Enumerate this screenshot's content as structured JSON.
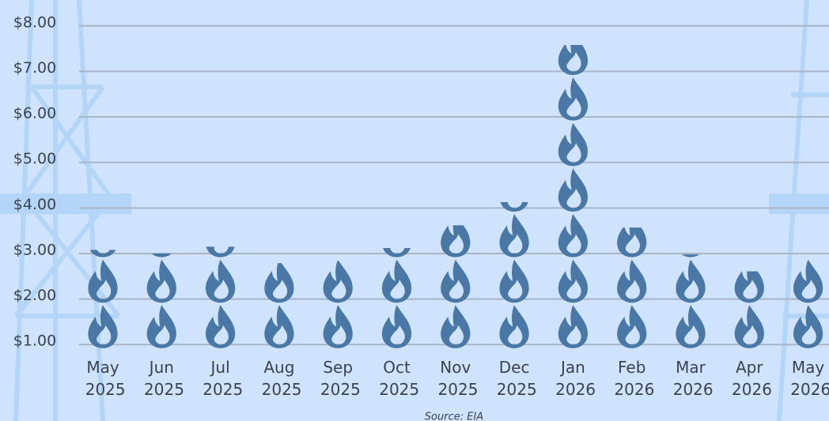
{
  "chart_data": {
    "type": "pictogram",
    "source": "Source: EIA",
    "categories": [
      "May 2025",
      "Jun 2025",
      "Jul 2025",
      "Aug 2025",
      "Sep 2025",
      "Oct 2025",
      "Nov 2025",
      "Dec 2025",
      "Jan 2026",
      "Feb 2026",
      "Mar 2026",
      "Apr 2026",
      "May 2026"
    ],
    "values": [
      3.08,
      3.0,
      3.15,
      2.79,
      2.84,
      3.12,
      3.62,
      4.13,
      7.58,
      3.57,
      2.98,
      2.61,
      2.86
    ],
    "color": "#4a78a6",
    "ylim": [
      0.9,
      8.1
    ],
    "yticks": [
      {
        "value": 1,
        "label": "$1.00"
      },
      {
        "value": 2,
        "label": "$2.00"
      },
      {
        "value": 3,
        "label": "$3.00"
      },
      {
        "value": 4,
        "label": "$4.00"
      },
      {
        "value": 5,
        "label": "$5.00"
      },
      {
        "value": 6,
        "label": "$6.00"
      },
      {
        "value": 7,
        "label": "$7.00"
      },
      {
        "value": 8,
        "label": "$8.00"
      }
    ],
    "grid": true
  }
}
